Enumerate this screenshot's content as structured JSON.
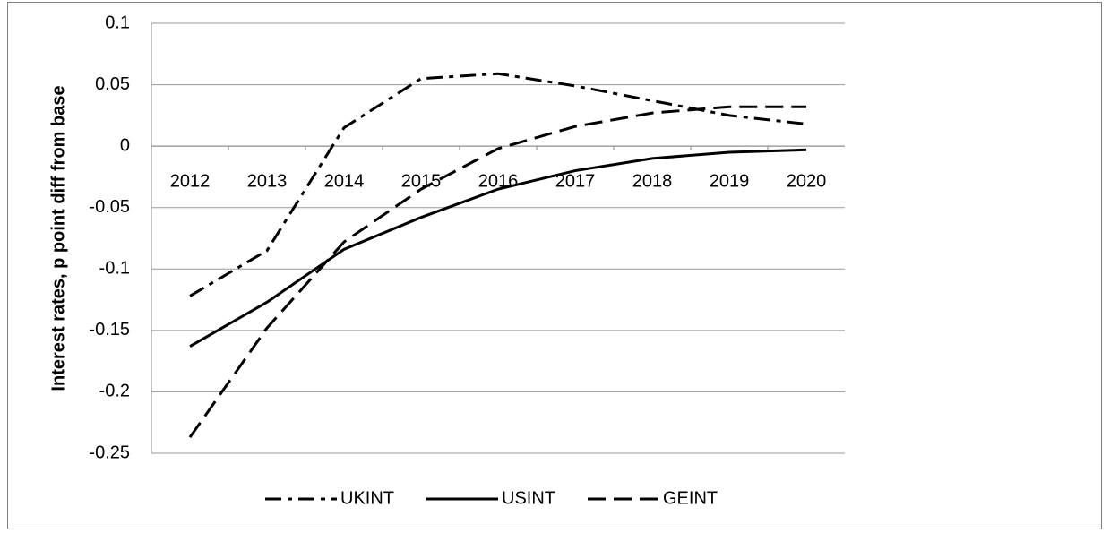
{
  "chart_data": {
    "type": "line",
    "y_label": "Interest rates, p point diff from base",
    "categories": [
      "2012",
      "2013",
      "2014",
      "2015",
      "2016",
      "2017",
      "2018",
      "2019",
      "2020"
    ],
    "series": [
      {
        "name": "UKINT",
        "color": "#000000",
        "dash": "dashdot",
        "values": [
          -0.122,
          -0.085,
          0.015,
          0.055,
          0.059,
          0.049,
          0.037,
          0.025,
          0.018
        ]
      },
      {
        "name": "USINT",
        "color": "#000000",
        "dash": "solid",
        "values": [
          -0.163,
          -0.127,
          -0.084,
          -0.058,
          -0.035,
          -0.02,
          -0.01,
          -0.005,
          -0.003
        ]
      },
      {
        "name": "GEINT",
        "color": "#000000",
        "dash": "dashed",
        "values": [
          -0.237,
          -0.148,
          -0.078,
          -0.035,
          -0.002,
          0.016,
          0.027,
          0.032,
          0.032
        ]
      }
    ],
    "ylim": [
      -0.25,
      0.1
    ],
    "yticks": [
      -0.25,
      -0.2,
      -0.15,
      -0.1,
      -0.05,
      0,
      0.05,
      0.1
    ],
    "grid": true,
    "legend": "bottom"
  }
}
